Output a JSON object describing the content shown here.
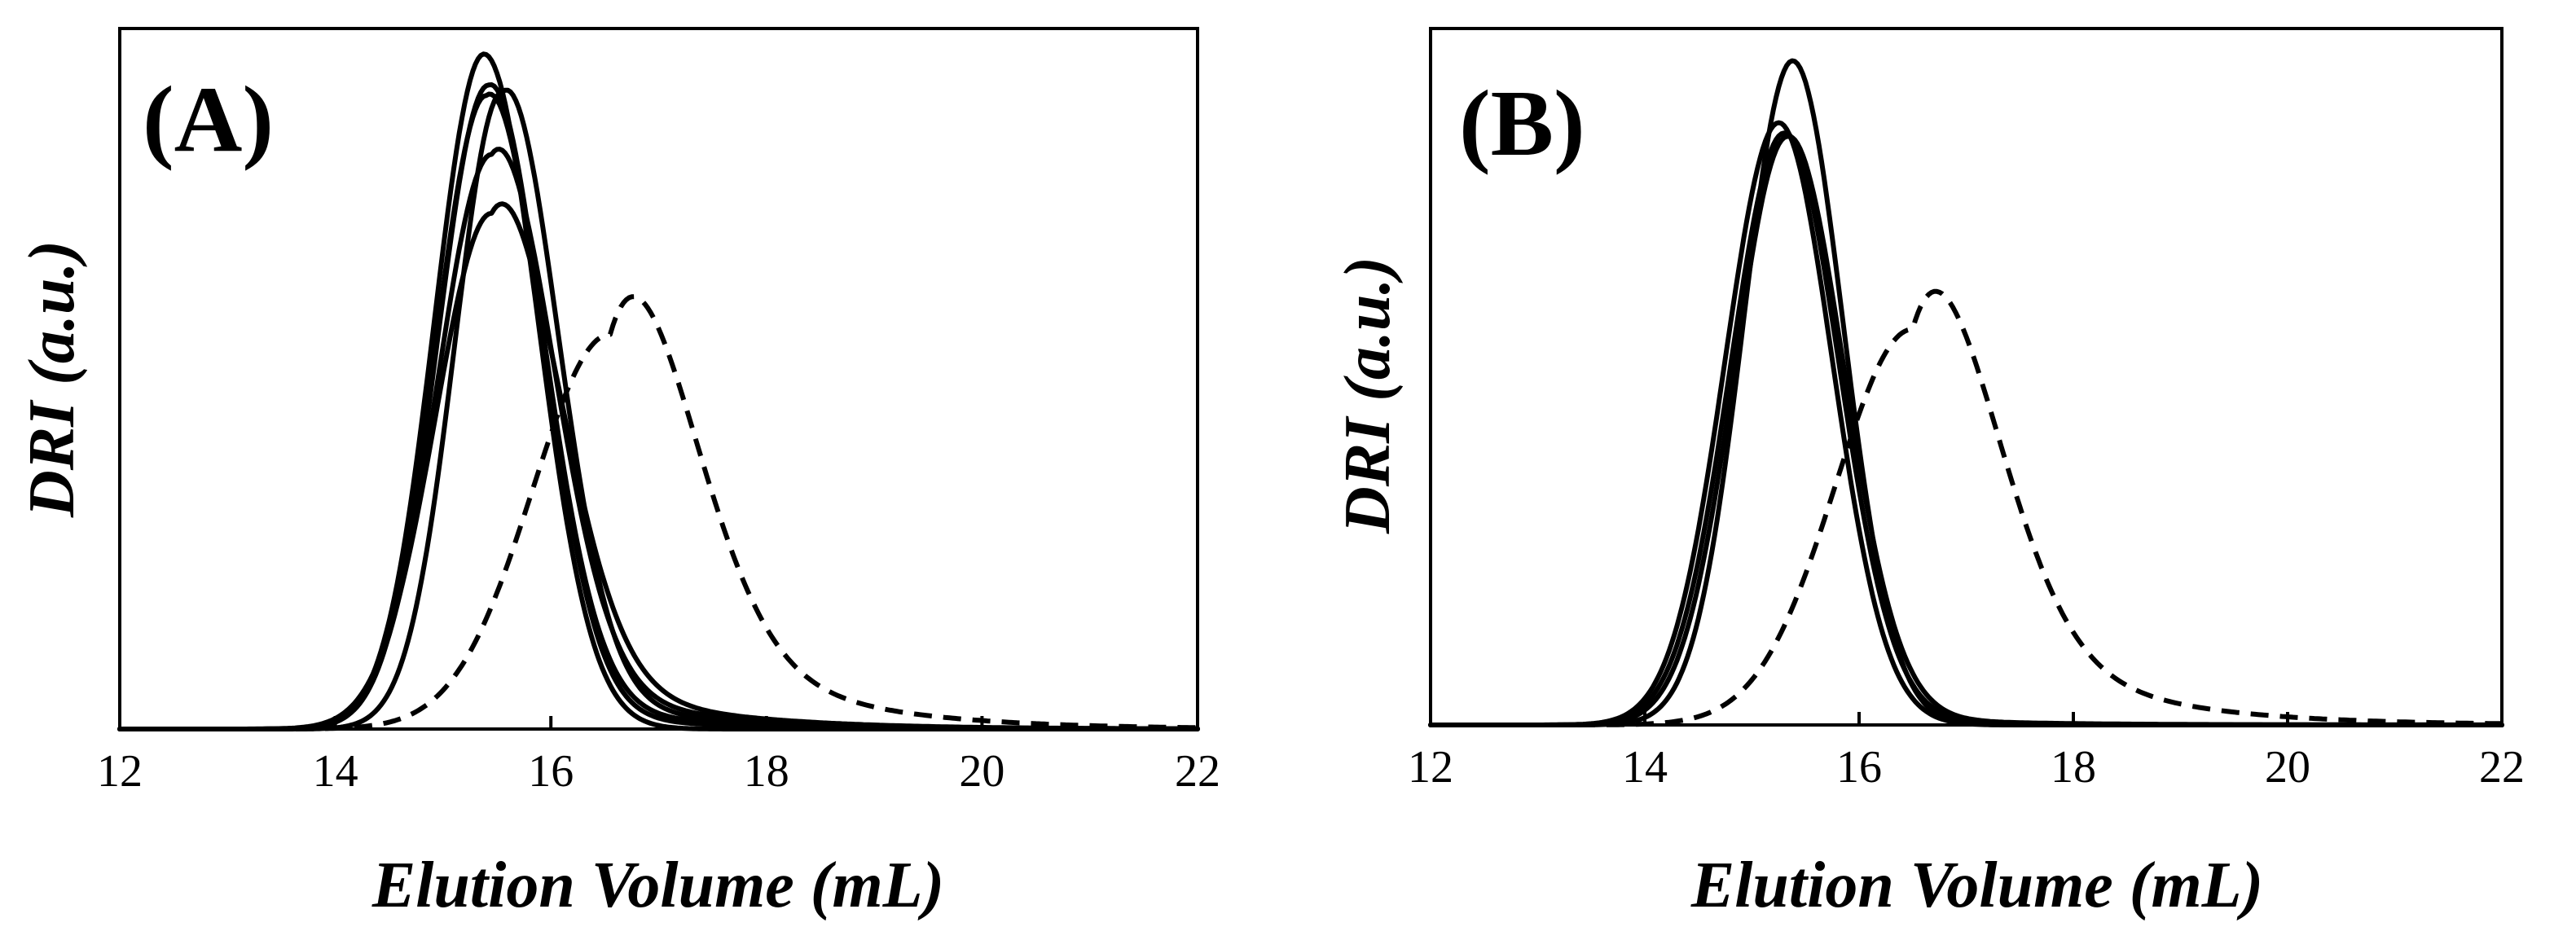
{
  "chart_data": [
    {
      "type": "line",
      "panel_label": "(A)",
      "xlabel": "Elution Volume (mL)",
      "ylabel": "DRI (a.u.)",
      "xlim": [
        12,
        22
      ],
      "ylim": [
        0,
        1.0
      ],
      "x_ticks": [
        12,
        14,
        16,
        18,
        20,
        22
      ],
      "x_tick_labels": [
        "12",
        "14",
        "16",
        "18",
        "20",
        "22"
      ],
      "grid": false,
      "series": [
        {
          "name": "solid-1",
          "style": "solid",
          "peak_x": 15.38,
          "peak_y": 0.975,
          "sigma_left": 0.46,
          "sigma_right": 0.5,
          "tail": 0.0
        },
        {
          "name": "solid-2",
          "style": "solid",
          "peak_x": 15.42,
          "peak_y": 0.93,
          "sigma_left": 0.47,
          "sigma_right": 0.5,
          "tail": 0.05
        },
        {
          "name": "solid-3",
          "style": "solid",
          "peak_x": 15.4,
          "peak_y": 0.915,
          "sigma_left": 0.47,
          "sigma_right": 0.52,
          "tail": 0.08
        },
        {
          "name": "solid-4",
          "style": "solid",
          "peak_x": 15.55,
          "peak_y": 0.92,
          "sigma_left": 0.44,
          "sigma_right": 0.5,
          "tail": 0.1
        },
        {
          "name": "solid-5",
          "style": "solid",
          "peak_x": 15.45,
          "peak_y": 0.83,
          "sigma_left": 0.5,
          "sigma_right": 0.55,
          "tail": 0.16
        },
        {
          "name": "solid-6",
          "style": "solid",
          "peak_x": 15.45,
          "peak_y": 0.745,
          "sigma_left": 0.52,
          "sigma_right": 0.6,
          "tail": 0.22
        },
        {
          "name": "dashed",
          "style": "dashed",
          "peak_x": 16.55,
          "peak_y": 0.57,
          "sigma_left": 0.72,
          "sigma_right": 0.72,
          "tail": 0.55
        }
      ]
    },
    {
      "type": "line",
      "panel_label": "(B)",
      "xlabel": "Elution Volume (mL)",
      "ylabel": "DRI (a.u.)",
      "xlim": [
        12,
        22
      ],
      "ylim": [
        0,
        1.0
      ],
      "x_ticks": [
        12,
        14,
        16,
        18,
        20,
        22
      ],
      "x_tick_labels": [
        "12",
        "14",
        "16",
        "18",
        "20",
        "22"
      ],
      "grid": false,
      "series": [
        {
          "name": "solid-1",
          "style": "solid",
          "peak_x": 15.38,
          "peak_y": 0.965,
          "sigma_left": 0.46,
          "sigma_right": 0.47,
          "tail": 0.0
        },
        {
          "name": "solid-2",
          "style": "solid",
          "peak_x": 15.25,
          "peak_y": 0.875,
          "sigma_left": 0.5,
          "sigma_right": 0.5,
          "tail": 0.0
        },
        {
          "name": "solid-3",
          "style": "solid",
          "peak_x": 15.3,
          "peak_y": 0.86,
          "sigma_left": 0.5,
          "sigma_right": 0.51,
          "tail": 0.02
        },
        {
          "name": "solid-4",
          "style": "solid",
          "peak_x": 15.33,
          "peak_y": 0.855,
          "sigma_left": 0.49,
          "sigma_right": 0.52,
          "tail": 0.03
        },
        {
          "name": "dashed",
          "style": "dashed",
          "peak_x": 16.5,
          "peak_y": 0.575,
          "sigma_left": 0.72,
          "sigma_right": 0.72,
          "tail": 0.55
        }
      ]
    }
  ]
}
